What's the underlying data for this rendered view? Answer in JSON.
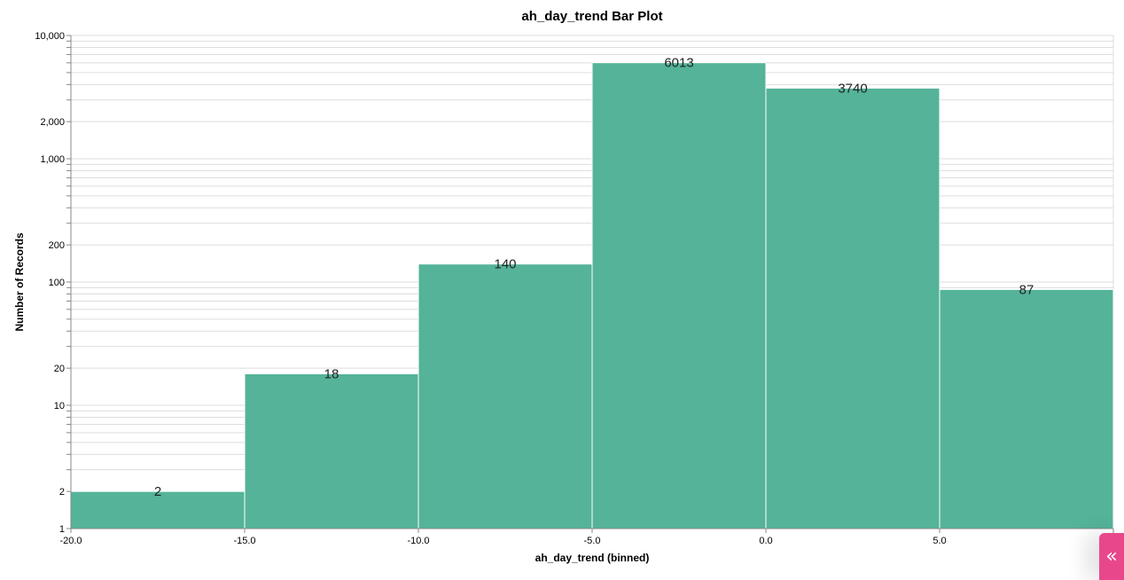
{
  "chart_data": {
    "type": "bar",
    "title": "ah_day_trend Bar Plot",
    "xlabel": "ah_day_trend (binned)",
    "ylabel": "Number of Records",
    "y_scale": "log",
    "ylim": [
      1,
      10000
    ],
    "xlim": [
      -20,
      10
    ],
    "bins": [
      {
        "x0": -20,
        "x1": -15,
        "value": 2
      },
      {
        "x0": -15,
        "x1": -10,
        "value": 18
      },
      {
        "x0": -10,
        "x1": -5,
        "value": 140
      },
      {
        "x0": -5,
        "x1": 0,
        "value": 6013
      },
      {
        "x0": 0,
        "x1": 5,
        "value": 3740
      },
      {
        "x0": 5,
        "x1": 10,
        "value": 87
      }
    ],
    "data_labels": [
      "2",
      "18",
      "140",
      "6013",
      "3740",
      "87"
    ],
    "x_ticks": [
      {
        "value": -20,
        "label": "-20.0"
      },
      {
        "value": -15,
        "label": "-15.0"
      },
      {
        "value": -10,
        "label": "-10.0"
      },
      {
        "value": -5,
        "label": "-5.0"
      },
      {
        "value": 0,
        "label": "0.0"
      },
      {
        "value": 5,
        "label": "5.0"
      },
      {
        "value": 10,
        "label": "10.0"
      }
    ],
    "y_ticks": [
      {
        "value": 1,
        "label": "1"
      },
      {
        "value": 2,
        "label": "2"
      },
      {
        "value": 10,
        "label": "10"
      },
      {
        "value": 20,
        "label": "20"
      },
      {
        "value": 100,
        "label": "100"
      },
      {
        "value": 200,
        "label": "200"
      },
      {
        "value": 1000,
        "label": "1,000"
      },
      {
        "value": 2000,
        "label": "2,000"
      },
      {
        "value": 10000,
        "label": "10,000"
      }
    ],
    "grid": true,
    "colors": {
      "bar": "#54b399"
    }
  },
  "ui": {
    "collapse_toggle_label": "«"
  }
}
